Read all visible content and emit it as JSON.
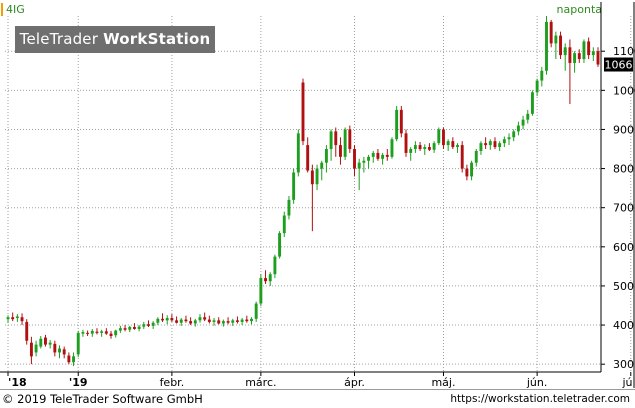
{
  "header": {
    "ticker": "4IG",
    "period": "naponta"
  },
  "logo": {
    "brand": "TeleTrader",
    "product": "WorkStation"
  },
  "footer": {
    "copyright": "© 2019 TeleTrader Software GmbH",
    "url": "https://workstation.teletrader.com"
  },
  "colors": {
    "up": "#1e9e1e",
    "down": "#b01010",
    "grid": "#a0a0a0",
    "ticker_text": "#2e8b1e",
    "last_price_box": "#000000"
  },
  "chart_data": {
    "type": "candlestick",
    "ylim": [
      280,
      1190
    ],
    "y_ticks": [
      300,
      400,
      500,
      600,
      700,
      800,
      900,
      1000,
      1100
    ],
    "x_tick_labels": [
      {
        "label": "'18",
        "index": 0
      },
      {
        "label": "'19",
        "index": 15
      },
      {
        "label": "febr.",
        "index": 35
      },
      {
        "label": "márc.",
        "index": 54
      },
      {
        "label": "ápr.",
        "index": 74
      },
      {
        "label": "máj.",
        "index": 93
      },
      {
        "label": "jún.",
        "index": 113
      },
      {
        "label": "júl.",
        "index": 133
      }
    ],
    "last_price": "1066",
    "grid": true,
    "candles": [
      [
        415,
        425,
        405,
        420
      ],
      [
        420,
        432,
        410,
        415
      ],
      [
        418,
        428,
        408,
        422
      ],
      [
        420,
        430,
        400,
        410
      ],
      [
        408,
        415,
        350,
        360
      ],
      [
        355,
        370,
        300,
        320
      ],
      [
        330,
        360,
        320,
        350
      ],
      [
        345,
        372,
        340,
        365
      ],
      [
        368,
        375,
        345,
        350
      ],
      [
        350,
        362,
        340,
        355
      ],
      [
        352,
        360,
        320,
        330
      ],
      [
        330,
        348,
        315,
        340
      ],
      [
        338,
        345,
        315,
        325
      ],
      [
        322,
        330,
        300,
        305
      ],
      [
        305,
        330,
        295,
        320
      ],
      [
        325,
        385,
        318,
        380
      ],
      [
        378,
        388,
        370,
        382
      ],
      [
        380,
        386,
        372,
        378
      ],
      [
        378,
        390,
        370,
        385
      ],
      [
        383,
        392,
        376,
        380
      ],
      [
        380,
        388,
        370,
        384
      ],
      [
        384,
        392,
        375,
        378
      ],
      [
        378,
        385,
        365,
        372
      ],
      [
        374,
        388,
        368,
        386
      ],
      [
        386,
        398,
        380,
        392
      ],
      [
        392,
        400,
        384,
        388
      ],
      [
        388,
        398,
        382,
        395
      ],
      [
        395,
        405,
        388,
        390
      ],
      [
        390,
        400,
        384,
        396
      ],
      [
        396,
        408,
        390,
        402
      ],
      [
        402,
        412,
        395,
        398
      ],
      [
        398,
        410,
        390,
        406
      ],
      [
        406,
        420,
        400,
        416
      ],
      [
        416,
        430,
        408,
        412
      ],
      [
        412,
        425,
        402,
        418
      ],
      [
        418,
        428,
        408,
        412
      ],
      [
        412,
        422,
        404,
        406
      ],
      [
        406,
        418,
        398,
        414
      ],
      [
        414,
        424,
        406,
        410
      ],
      [
        410,
        420,
        400,
        404
      ],
      [
        404,
        416,
        396,
        412
      ],
      [
        412,
        428,
        406,
        420
      ],
      [
        420,
        432,
        410,
        414
      ],
      [
        414,
        424,
        404,
        408
      ],
      [
        408,
        418,
        398,
        412
      ],
      [
        412,
        420,
        402,
        404
      ],
      [
        404,
        414,
        396,
        410
      ],
      [
        410,
        420,
        402,
        406
      ],
      [
        406,
        416,
        398,
        412
      ],
      [
        412,
        422,
        404,
        408
      ],
      [
        408,
        418,
        400,
        414
      ],
      [
        414,
        424,
        406,
        410
      ],
      [
        410,
        420,
        402,
        416
      ],
      [
        416,
        460,
        408,
        455
      ],
      [
        455,
        530,
        448,
        520
      ],
      [
        520,
        540,
        505,
        512
      ],
      [
        512,
        535,
        500,
        530
      ],
      [
        530,
        580,
        520,
        575
      ],
      [
        575,
        640,
        570,
        635
      ],
      [
        635,
        690,
        625,
        680
      ],
      [
        680,
        730,
        670,
        720
      ],
      [
        720,
        800,
        710,
        790
      ],
      [
        790,
        900,
        780,
        890
      ],
      [
        1020,
        1030,
        860,
        870
      ],
      [
        860,
        880,
        790,
        795
      ],
      [
        795,
        810,
        640,
        760
      ],
      [
        760,
        810,
        745,
        800
      ],
      [
        800,
        820,
        770,
        815
      ],
      [
        815,
        860,
        790,
        850
      ],
      [
        850,
        900,
        820,
        895
      ],
      [
        895,
        905,
        830,
        860
      ],
      [
        860,
        880,
        810,
        830
      ],
      [
        830,
        905,
        822,
        900
      ],
      [
        900,
        910,
        840,
        850
      ],
      [
        850,
        860,
        780,
        800
      ],
      [
        800,
        825,
        745,
        815
      ],
      [
        815,
        830,
        790,
        820
      ],
      [
        820,
        835,
        800,
        830
      ],
      [
        830,
        845,
        815,
        840
      ],
      [
        840,
        850,
        820,
        825
      ],
      [
        825,
        840,
        810,
        835
      ],
      [
        835,
        850,
        820,
        830
      ],
      [
        830,
        880,
        825,
        875
      ],
      [
        875,
        960,
        870,
        950
      ],
      [
        950,
        960,
        880,
        890
      ],
      [
        890,
        900,
        830,
        840
      ],
      [
        840,
        855,
        820,
        850
      ],
      [
        850,
        870,
        840,
        860
      ],
      [
        860,
        868,
        845,
        850
      ],
      [
        850,
        862,
        835,
        855
      ],
      [
        855,
        865,
        845,
        848
      ],
      [
        848,
        870,
        840,
        865
      ],
      [
        865,
        905,
        860,
        900
      ],
      [
        900,
        905,
        850,
        860
      ],
      [
        860,
        875,
        845,
        870
      ],
      [
        870,
        880,
        850,
        855
      ],
      [
        855,
        865,
        840,
        860
      ],
      [
        860,
        870,
        790,
        800
      ],
      [
        800,
        810,
        770,
        780
      ],
      [
        780,
        820,
        770,
        815
      ],
      [
        815,
        850,
        805,
        845
      ],
      [
        845,
        870,
        835,
        865
      ],
      [
        865,
        880,
        850,
        860
      ],
      [
        860,
        875,
        848,
        870
      ],
      [
        870,
        880,
        850,
        855
      ],
      [
        855,
        870,
        845,
        865
      ],
      [
        865,
        882,
        855,
        875
      ],
      [
        875,
        890,
        860,
        880
      ],
      [
        880,
        900,
        870,
        895
      ],
      [
        895,
        920,
        885,
        910
      ],
      [
        910,
        935,
        900,
        925
      ],
      [
        925,
        950,
        915,
        940
      ],
      [
        940,
        1000,
        935,
        995
      ],
      [
        995,
        1030,
        985,
        1025
      ],
      [
        1025,
        1060,
        1010,
        1050
      ],
      [
        1050,
        1190,
        1040,
        1175
      ],
      [
        1175,
        1180,
        1110,
        1120
      ],
      [
        1120,
        1150,
        1080,
        1140
      ],
      [
        1140,
        1150,
        1080,
        1090
      ],
      [
        1090,
        1120,
        1050,
        1110
      ],
      [
        1110,
        1130,
        965,
        1070
      ],
      [
        1070,
        1100,
        1045,
        1095
      ],
      [
        1095,
        1105,
        1070,
        1080
      ],
      [
        1080,
        1130,
        1070,
        1125
      ],
      [
        1125,
        1135,
        1080,
        1090
      ],
      [
        1090,
        1110,
        1075,
        1100
      ],
      [
        1100,
        1110,
        1060,
        1066
      ]
    ]
  }
}
